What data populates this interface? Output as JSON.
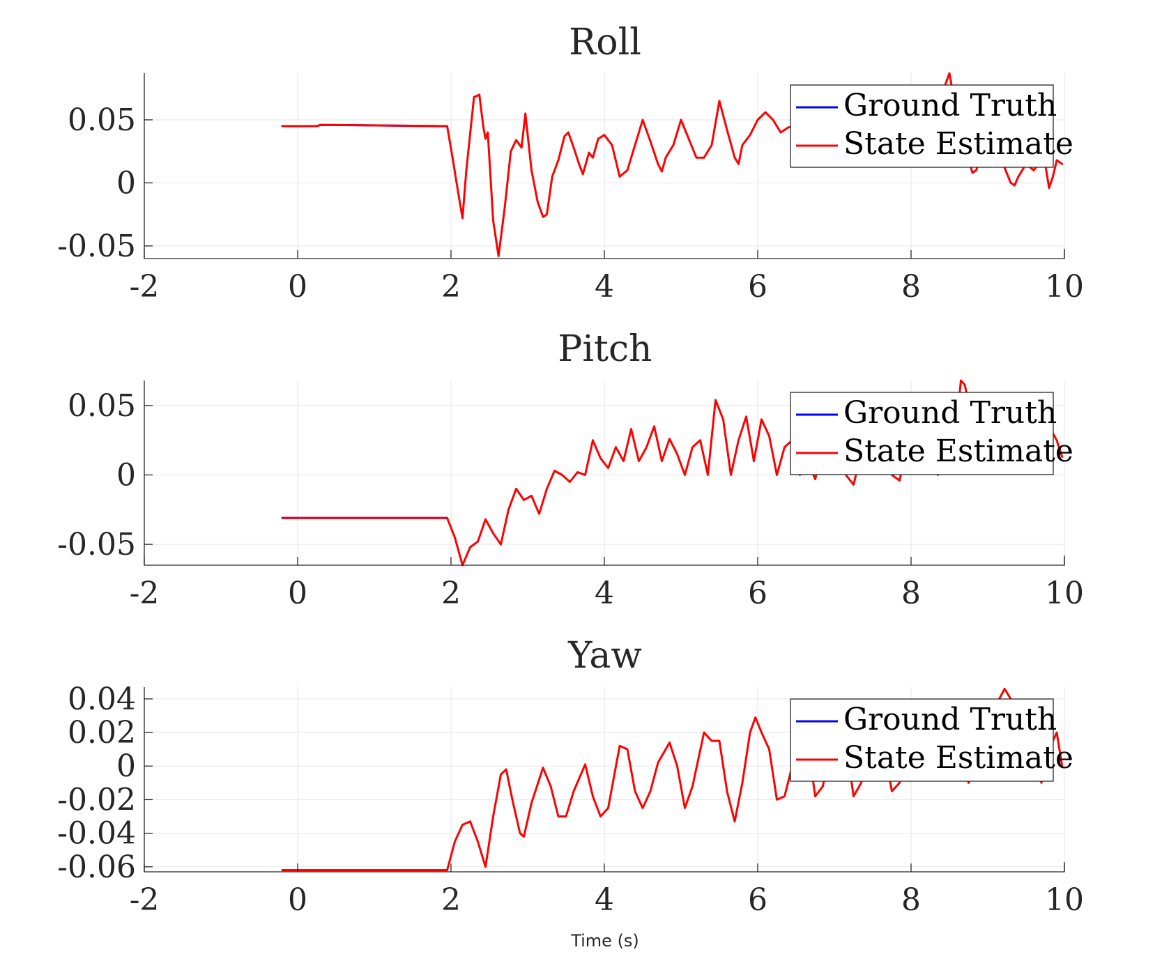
{
  "chart_data": [
    {
      "type": "line",
      "title": "Roll",
      "xlabel": "",
      "ylabel": "",
      "xlim": [
        -2,
        10
      ],
      "ylim": [
        -0.06,
        0.087
      ],
      "xticks": [
        "-2",
        "0",
        "2",
        "4",
        "6",
        "8",
        "10"
      ],
      "yticks": [
        {
          "value": -0.05,
          "label": "-0.05"
        },
        {
          "value": 0,
          "label": "0"
        },
        {
          "value": 0.05,
          "label": "0.05"
        }
      ],
      "grid": true,
      "legend": {
        "position": "top-right",
        "entries": [
          "Ground Truth",
          "State Estimate"
        ]
      },
      "series": [
        {
          "name": "Ground Truth",
          "color": "#0000ff",
          "x": [
            -0.2,
            0.25,
            0.3,
            1.95
          ],
          "y": [
            0.045,
            0.045,
            0.046,
            0.045
          ]
        },
        {
          "name": "State Estimate",
          "color": "#ff0000",
          "x": [
            -0.2,
            0.25,
            0.3,
            1.95,
            2.02,
            2.1,
            2.15,
            2.2,
            2.3,
            2.37,
            2.42,
            2.45,
            2.48,
            2.55,
            2.62,
            2.7,
            2.78,
            2.85,
            2.92,
            2.97,
            3.05,
            3.13,
            3.2,
            3.25,
            3.32,
            3.4,
            3.48,
            3.53,
            3.6,
            3.67,
            3.72,
            3.8,
            3.85,
            3.92,
            4.0,
            4.1,
            4.2,
            4.3,
            4.4,
            4.5,
            4.6,
            4.7,
            4.75,
            4.8,
            4.9,
            5.0,
            5.1,
            5.2,
            5.3,
            5.4,
            5.5,
            5.6,
            5.7,
            5.75,
            5.8,
            5.9,
            6.0,
            6.1,
            6.2,
            6.3,
            6.4,
            6.5,
            6.6,
            6.7,
            6.75,
            6.8,
            6.9,
            7.0,
            7.1,
            7.2,
            7.3,
            7.4,
            7.5,
            7.6,
            7.7,
            7.8,
            7.9,
            8.0,
            8.1,
            8.2,
            8.3,
            8.4,
            8.5,
            8.55,
            8.6,
            8.7,
            8.8,
            8.85,
            8.9,
            9.0,
            9.1,
            9.2,
            9.3,
            9.35,
            9.4,
            9.5,
            9.6,
            9.7,
            9.75,
            9.8,
            9.85,
            9.9,
            9.97
          ],
          "y": [
            0.045,
            0.045,
            0.046,
            0.045,
            0.02,
            -0.01,
            -0.028,
            0.01,
            0.068,
            0.07,
            0.045,
            0.035,
            0.04,
            -0.03,
            -0.058,
            -0.02,
            0.025,
            0.034,
            0.028,
            0.055,
            0.01,
            -0.015,
            -0.027,
            -0.025,
            0.005,
            0.018,
            0.037,
            0.04,
            0.028,
            0.015,
            0.007,
            0.024,
            0.02,
            0.035,
            0.038,
            0.03,
            0.005,
            0.01,
            0.03,
            0.05,
            0.033,
            0.015,
            0.009,
            0.02,
            0.03,
            0.05,
            0.035,
            0.02,
            0.02,
            0.03,
            0.065,
            0.042,
            0.02,
            0.015,
            0.03,
            0.038,
            0.05,
            0.056,
            0.05,
            0.04,
            0.044,
            0.045,
            0.042,
            0.05,
            0.055,
            0.048,
            0.04,
            0.045,
            0.035,
            0.04,
            0.045,
            0.038,
            0.04,
            0.045,
            0.042,
            0.05,
            0.045,
            0.04,
            0.048,
            0.055,
            0.06,
            0.07,
            0.087,
            0.07,
            0.04,
            0.03,
            0.008,
            0.01,
            0.02,
            0.035,
            0.025,
            0.015,
            0.0,
            -0.002,
            0.005,
            0.015,
            0.01,
            0.018,
            0.015,
            -0.004,
            0.005,
            0.018,
            0.015
          ]
        }
      ]
    },
    {
      "type": "line",
      "title": "Pitch",
      "xlabel": "",
      "ylabel": "",
      "xlim": [
        -2,
        10
      ],
      "ylim": [
        -0.065,
        0.068
      ],
      "xticks": [
        "-2",
        "0",
        "2",
        "4",
        "6",
        "8",
        "10"
      ],
      "yticks": [
        {
          "value": -0.05,
          "label": "-0.05"
        },
        {
          "value": 0,
          "label": "0"
        },
        {
          "value": 0.05,
          "label": "0.05"
        }
      ],
      "grid": true,
      "legend": {
        "position": "top-right",
        "entries": [
          "Ground Truth",
          "State Estimate"
        ]
      },
      "series": [
        {
          "name": "Ground Truth",
          "color": "#0000ff",
          "x": [
            -0.2,
            1.95
          ],
          "y": [
            -0.031,
            -0.031
          ]
        },
        {
          "name": "State Estimate",
          "color": "#ff0000",
          "x": [
            -0.2,
            1.95,
            2.05,
            2.15,
            2.25,
            2.35,
            2.45,
            2.55,
            2.65,
            2.75,
            2.85,
            2.95,
            3.05,
            3.15,
            3.25,
            3.35,
            3.45,
            3.55,
            3.65,
            3.75,
            3.85,
            3.95,
            4.05,
            4.15,
            4.25,
            4.35,
            4.45,
            4.55,
            4.65,
            4.75,
            4.85,
            4.95,
            5.05,
            5.15,
            5.25,
            5.35,
            5.45,
            5.55,
            5.65,
            5.75,
            5.85,
            5.95,
            6.05,
            6.15,
            6.25,
            6.35,
            6.45,
            6.55,
            6.65,
            6.75,
            6.85,
            6.95,
            7.05,
            7.15,
            7.25,
            7.35,
            7.45,
            7.55,
            7.65,
            7.75,
            7.85,
            7.95,
            8.05,
            8.15,
            8.25,
            8.35,
            8.45,
            8.55,
            8.65,
            8.7,
            8.8,
            8.9,
            9.0,
            9.1,
            9.2,
            9.3,
            9.4,
            9.5,
            9.6,
            9.7,
            9.8,
            9.9,
            9.97
          ],
          "y": [
            -0.031,
            -0.031,
            -0.045,
            -0.065,
            -0.052,
            -0.048,
            -0.032,
            -0.042,
            -0.05,
            -0.025,
            -0.01,
            -0.018,
            -0.015,
            -0.028,
            -0.01,
            0.003,
            0.0,
            -0.005,
            0.002,
            0.0,
            0.025,
            0.012,
            0.005,
            0.02,
            0.01,
            0.033,
            0.01,
            0.02,
            0.035,
            0.01,
            0.026,
            0.015,
            0.0,
            0.02,
            0.025,
            0.0,
            0.054,
            0.04,
            0.0,
            0.025,
            0.042,
            0.01,
            0.04,
            0.028,
            0.0,
            0.02,
            0.025,
            0.0,
            0.01,
            -0.003,
            0.02,
            0.02,
            0.01,
            0.0,
            -0.007,
            0.015,
            0.02,
            0.005,
            0.02,
            0.0,
            -0.004,
            0.02,
            0.015,
            0.01,
            0.02,
            0.0,
            0.015,
            0.01,
            0.068,
            0.065,
            0.04,
            0.03,
            0.035,
            0.028,
            0.03,
            0.01,
            0.025,
            0.02,
            0.03,
            0.03,
            0.035,
            0.025,
            0.013
          ]
        }
      ]
    },
    {
      "type": "line",
      "title": "Yaw",
      "xlabel": "Time (s)",
      "ylabel": "",
      "xlim": [
        -2,
        10
      ],
      "ylim": [
        -0.063,
        0.047
      ],
      "xticks": [
        "-2",
        "0",
        "2",
        "4",
        "6",
        "8",
        "10"
      ],
      "yticks": [
        {
          "value": -0.06,
          "label": "-0.06"
        },
        {
          "value": -0.04,
          "label": "-0.04"
        },
        {
          "value": -0.02,
          "label": "-0.02"
        },
        {
          "value": 0,
          "label": "0"
        },
        {
          "value": 0.02,
          "label": "0.02"
        },
        {
          "value": 0.04,
          "label": "0.04"
        }
      ],
      "grid": true,
      "legend": {
        "position": "top-right",
        "entries": [
          "Ground Truth",
          "State Estimate"
        ]
      },
      "series": [
        {
          "name": "Ground Truth",
          "color": "#0000ff",
          "x": [
            -0.2,
            1.95
          ],
          "y": [
            -0.062,
            -0.062
          ]
        },
        {
          "name": "State Estimate",
          "color": "#ff0000",
          "x": [
            -0.2,
            1.95,
            2.05,
            2.15,
            2.25,
            2.35,
            2.45,
            2.55,
            2.65,
            2.72,
            2.8,
            2.9,
            2.95,
            3.05,
            3.2,
            3.3,
            3.4,
            3.5,
            3.6,
            3.75,
            3.85,
            3.95,
            4.05,
            4.2,
            4.3,
            4.4,
            4.5,
            4.6,
            4.7,
            4.85,
            4.95,
            5.05,
            5.15,
            5.3,
            5.4,
            5.5,
            5.6,
            5.7,
            5.8,
            5.9,
            5.97,
            6.05,
            6.15,
            6.25,
            6.35,
            6.45,
            6.55,
            6.65,
            6.75,
            6.85,
            6.95,
            7.05,
            7.15,
            7.25,
            7.35,
            7.45,
            7.55,
            7.65,
            7.75,
            7.85,
            7.95,
            8.05,
            8.15,
            8.25,
            8.35,
            8.45,
            8.55,
            8.65,
            8.75,
            8.85,
            8.95,
            9.05,
            9.15,
            9.22,
            9.3,
            9.4,
            9.5,
            9.6,
            9.7,
            9.8,
            9.9,
            9.97
          ],
          "y": [
            -0.062,
            -0.062,
            -0.045,
            -0.035,
            -0.033,
            -0.045,
            -0.06,
            -0.03,
            -0.005,
            -0.002,
            -0.02,
            -0.04,
            -0.042,
            -0.022,
            -0.001,
            -0.012,
            -0.03,
            -0.03,
            -0.015,
            0.001,
            -0.018,
            -0.03,
            -0.025,
            0.012,
            0.01,
            -0.015,
            -0.025,
            -0.015,
            0.002,
            0.014,
            0.0,
            -0.025,
            -0.012,
            0.02,
            0.015,
            0.015,
            -0.015,
            -0.033,
            -0.01,
            0.02,
            0.029,
            0.02,
            0.01,
            -0.02,
            -0.018,
            0.0,
            0.028,
            0.015,
            -0.018,
            -0.012,
            0.012,
            0.02,
            0.015,
            -0.018,
            -0.01,
            0.015,
            0.02,
            0.01,
            -0.015,
            -0.01,
            0.01,
            0.02,
            0.015,
            -0.005,
            0.005,
            0.015,
            0.02,
            0.01,
            -0.01,
            0.0,
            0.025,
            0.03,
            0.04,
            0.046,
            0.04,
            0.03,
            0.015,
            0.01,
            -0.01,
            0.01,
            0.02,
            0.0
          ]
        }
      ]
    }
  ]
}
